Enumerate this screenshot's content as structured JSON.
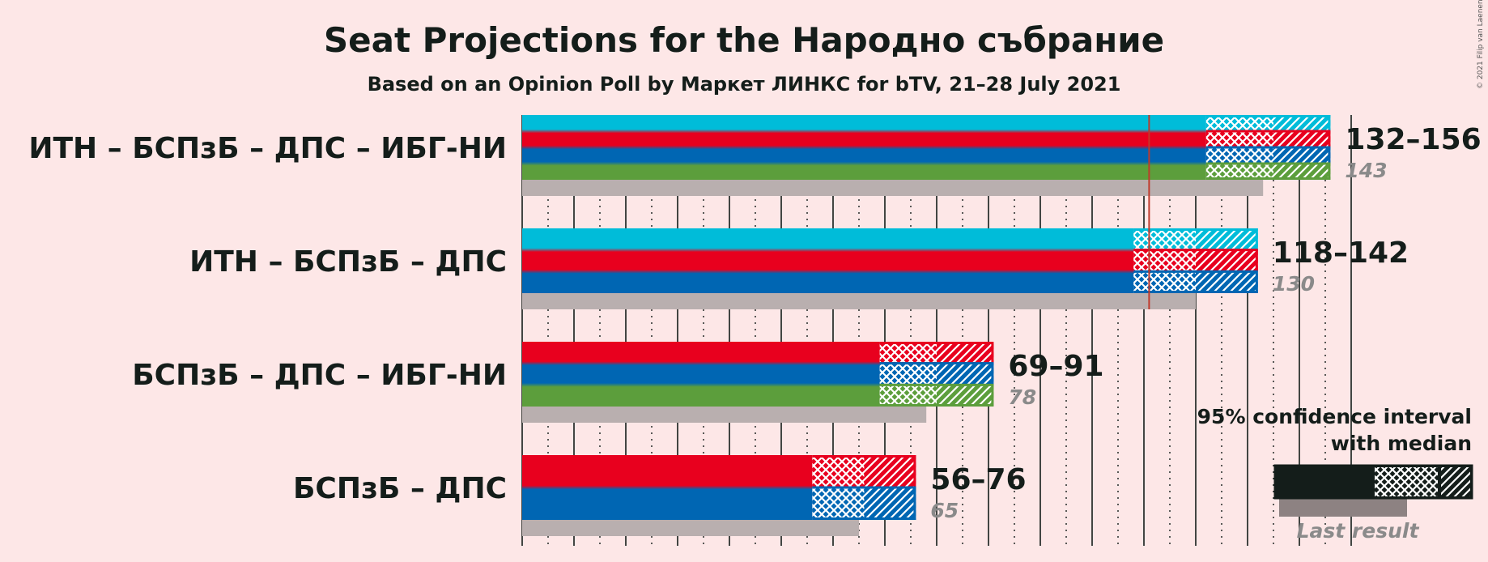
{
  "header": {
    "title": "Seat Projections for the Народно събрание",
    "subtitle": "Based on an Opinion Poll by Маркет ЛИНКС for bTV, 21–28 July 2021"
  },
  "copyright": "© 2021 Filip van Laenen",
  "legend": {
    "title_line1": "95% confidence interval",
    "title_line2": "with median",
    "last_result": "Last result"
  },
  "colors": {
    "background": "#fde7e7",
    "ИТН": "#00bcd9",
    "БСПзБ": "#e8001e",
    "ДПС": "#0066b3",
    "ИБГ-НИ": "#5c9e3c",
    "last_result": "#b9afaf",
    "majority_line": "#c0392b",
    "dark": "#141d1a"
  },
  "chart_data": {
    "type": "bar",
    "orientation": "horizontal",
    "axis_range": [
      0,
      160
    ],
    "majority": 121,
    "categories": [
      "ИТН – БСПзБ – ДПС – ИБГ-НИ",
      "ИТН – БСПзБ – ДПС",
      "БСПзБ – ДПС – ИБГ-НИ",
      "БСПзБ – ДПС"
    ],
    "coalitions": [
      {
        "label": "ИТН – БСПзБ – ДПС – ИБГ-НИ",
        "parties": [
          "ИТН",
          "БСПзБ",
          "ДПС",
          "ИБГ-НИ"
        ],
        "low": 132,
        "high": 156,
        "median": 143,
        "ci50_low": 133,
        "ci50_high": 145,
        "last_result": 143,
        "range_label": "132–156",
        "median_label": "143"
      },
      {
        "label": "ИТН – БСПзБ – ДПС",
        "parties": [
          "ИТН",
          "БСПзБ",
          "ДПС"
        ],
        "low": 118,
        "high": 142,
        "median": 130,
        "ci50_low": 119,
        "ci50_high": 130,
        "last_result": 130,
        "range_label": "118–142",
        "median_label": "130"
      },
      {
        "label": "БСПзБ – ДПС – ИБГ-НИ",
        "parties": [
          "БСПзБ",
          "ДПС",
          "ИБГ-НИ"
        ],
        "low": 69,
        "high": 91,
        "median": 78,
        "ci50_low": 70,
        "ci50_high": 80,
        "last_result": 78,
        "range_label": "69–91",
        "median_label": "78"
      },
      {
        "label": "БСПзБ – ДПС",
        "parties": [
          "БСПзБ",
          "ДПС"
        ],
        "low": 56,
        "high": 76,
        "median": 65,
        "ci50_low": 56,
        "ci50_high": 66,
        "last_result": 65,
        "range_label": "56–76",
        "median_label": "65"
      }
    ]
  }
}
